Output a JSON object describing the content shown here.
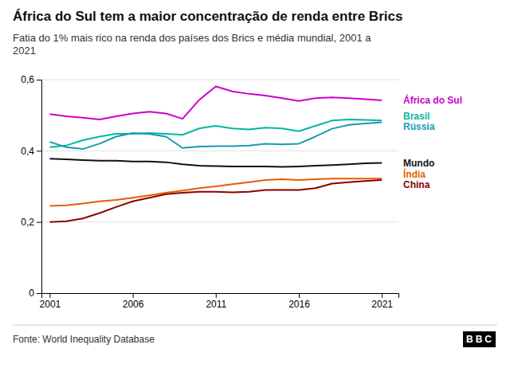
{
  "chart_data": {
    "type": "line",
    "title": "África do Sul tem a maior concentração de renda entre Brics",
    "subtitle": "Fatia do 1% mais rico na renda dos países dos Brics e média mundial, 2001 a\n2021",
    "annotations": [
      "Fonte: World Inequality Database",
      "BBC"
    ],
    "x": [
      2001,
      2002,
      2003,
      2004,
      2005,
      2006,
      2007,
      2008,
      2009,
      2010,
      2011,
      2012,
      2013,
      2014,
      2015,
      2016,
      2017,
      2018,
      2019,
      2020,
      2021
    ],
    "series": [
      {
        "name": "África do Sul",
        "color": "#cc00cc",
        "values": [
          0.503,
          0.497,
          0.493,
          0.488,
          0.497,
          0.505,
          0.51,
          0.505,
          0.49,
          0.543,
          0.581,
          0.567,
          0.56,
          0.555,
          0.548,
          0.54,
          0.548,
          0.55,
          0.548,
          0.545,
          0.542
        ]
      },
      {
        "name": "Brasil",
        "color": "#00b8a0",
        "values": [
          0.41,
          0.415,
          0.43,
          0.44,
          0.448,
          0.448,
          0.45,
          0.448,
          0.445,
          0.463,
          0.47,
          0.463,
          0.46,
          0.465,
          0.463,
          0.455,
          0.47,
          0.485,
          0.488,
          0.487,
          0.485
        ]
      },
      {
        "name": "Rússia",
        "color": "#1a9ab0",
        "values": [
          0.425,
          0.41,
          0.405,
          0.42,
          0.44,
          0.45,
          0.447,
          0.44,
          0.408,
          0.412,
          0.413,
          0.413,
          0.415,
          0.42,
          0.418,
          0.42,
          0.44,
          0.462,
          0.473,
          0.477,
          0.48
        ]
      },
      {
        "name": "Mundo",
        "color": "#111111",
        "values": [
          0.378,
          0.376,
          0.374,
          0.372,
          0.372,
          0.37,
          0.37,
          0.368,
          0.362,
          0.358,
          0.357,
          0.356,
          0.356,
          0.356,
          0.355,
          0.356,
          0.358,
          0.36,
          0.362,
          0.365,
          0.366
        ]
      },
      {
        "name": "Índia",
        "color": "#e85d00",
        "values": [
          0.245,
          0.247,
          0.252,
          0.258,
          0.262,
          0.268,
          0.275,
          0.282,
          0.288,
          0.295,
          0.3,
          0.306,
          0.312,
          0.318,
          0.32,
          0.318,
          0.32,
          0.322,
          0.322,
          0.322,
          0.322
        ]
      },
      {
        "name": "China",
        "color": "#8b0000",
        "values": [
          0.2,
          0.202,
          0.21,
          0.225,
          0.242,
          0.258,
          0.268,
          0.278,
          0.282,
          0.285,
          0.285,
          0.283,
          0.285,
          0.29,
          0.29,
          0.29,
          0.295,
          0.308,
          0.312,
          0.315,
          0.318
        ]
      }
    ],
    "xlim": [
      2000.5,
      2022
    ],
    "xticks": [
      2001,
      2006,
      2011,
      2016,
      2021
    ],
    "ylim": [
      0,
      0.6
    ],
    "yticks": [
      0,
      {
        "value": 0.2,
        "label": "0,2"
      },
      {
        "value": 0.4,
        "label": "0,4"
      },
      {
        "value": 0.6,
        "label": "0,6"
      }
    ],
    "grid": true
  }
}
